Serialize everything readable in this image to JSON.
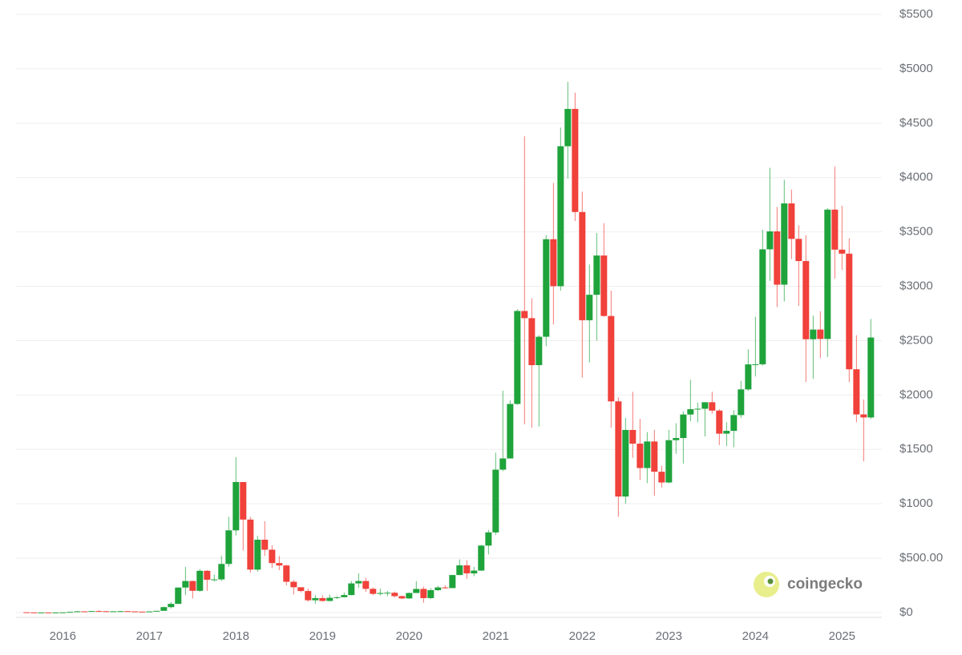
{
  "chart_data": {
    "type": "candlestick",
    "x": [
      2015.583,
      2015.667,
      2015.75,
      2015.833,
      2015.917,
      2016.0,
      2016.083,
      2016.167,
      2016.25,
      2016.333,
      2016.417,
      2016.5,
      2016.583,
      2016.667,
      2016.75,
      2016.833,
      2016.917,
      2017.0,
      2017.083,
      2017.167,
      2017.25,
      2017.333,
      2017.417,
      2017.5,
      2017.583,
      2017.667,
      2017.75,
      2017.833,
      2017.917,
      2018.0,
      2018.083,
      2018.167,
      2018.25,
      2018.333,
      2018.417,
      2018.5,
      2018.583,
      2018.667,
      2018.75,
      2018.833,
      2018.917,
      2019.0,
      2019.083,
      2019.167,
      2019.25,
      2019.333,
      2019.417,
      2019.5,
      2019.583,
      2019.667,
      2019.75,
      2019.833,
      2019.917,
      2020.0,
      2020.083,
      2020.167,
      2020.25,
      2020.333,
      2020.417,
      2020.5,
      2020.583,
      2020.667,
      2020.75,
      2020.833,
      2020.917,
      2021.0,
      2021.083,
      2021.167,
      2021.25,
      2021.333,
      2021.417,
      2021.5,
      2021.583,
      2021.667,
      2021.75,
      2021.833,
      2021.917,
      2022.0,
      2022.083,
      2022.167,
      2022.25,
      2022.333,
      2022.417,
      2022.5,
      2022.583,
      2022.667,
      2022.75,
      2022.833,
      2022.917,
      2023.0,
      2023.083,
      2023.167,
      2023.25,
      2023.333,
      2023.417,
      2023.5,
      2023.583,
      2023.667,
      2023.75,
      2023.833,
      2023.917,
      2024.0,
      2024.083,
      2024.167,
      2024.25,
      2024.333,
      2024.417,
      2024.5,
      2024.583,
      2024.667,
      2024.75,
      2024.833,
      2024.917,
      2025.0,
      2025.083,
      2025.167,
      2025.25,
      2025.333
    ],
    "open": [
      2.8,
      1.35,
      0.74,
      0.91,
      0.87,
      0.93,
      2.2,
      6.3,
      11.4,
      8.8,
      14,
      12.5,
      11.6,
      11.8,
      13.2,
      11,
      8.6,
      8,
      10.7,
      16,
      50,
      80,
      230,
      290,
      200,
      384,
      302,
      305,
      447,
      756,
      1200,
      855,
      395,
      670,
      578,
      455,
      433,
      283,
      233,
      198,
      113,
      133,
      107,
      136,
      141,
      161,
      268,
      290,
      218,
      172,
      180,
      182,
      151,
      130,
      180,
      217,
      133,
      206,
      231,
      225,
      345,
      434,
      360,
      386,
      616,
      737,
      1314,
      1417,
      1918,
      2773,
      2707,
      2275,
      2536,
      3433,
      3001,
      4288,
      4631,
      3683,
      2688,
      2922,
      3283,
      2727,
      1942,
      1067,
      1679,
      1553,
      1329,
      1573,
      1295,
      1196,
      1585,
      1605,
      1821,
      1870,
      1874,
      1934,
      1857,
      1645,
      1671,
      1816,
      2052,
      2282,
      2283,
      3340,
      3505,
      3015,
      3762,
      3436,
      3232,
      2513,
      2602,
      2516,
      3705,
      3337,
      3300,
      2237,
      1822,
      1794
    ],
    "high": [
      3.5,
      1.7,
      1.3,
      1.05,
      1.0,
      2.8,
      7.0,
      15,
      11.5,
      14.5,
      21,
      14.9,
      12.3,
      14.3,
      14.1,
      11.5,
      8.9,
      11.2,
      17,
      55,
      97,
      230,
      420,
      293,
      400,
      390,
      349,
      522,
      880,
      1430,
      1160,
      880,
      705,
      840,
      619,
      520,
      440,
      300,
      231,
      220,
      160,
      160,
      166,
      150,
      185,
      290,
      362,
      320,
      231,
      220,
      199,
      193,
      156,
      184,
      289,
      240,
      225,
      247,
      250,
      347,
      489,
      480,
      420,
      623,
      760,
      1470,
      2040,
      1950,
      2790,
      4380,
      2890,
      2550,
      3470,
      3950,
      4460,
      4880,
      4780,
      3870,
      3200,
      3490,
      3580,
      2960,
      1980,
      1790,
      2030,
      1780,
      1660,
      1680,
      1350,
      1680,
      1740,
      1850,
      2140,
      1930,
      1930,
      2030,
      1870,
      1750,
      1860,
      2130,
      2420,
      2720,
      3520,
      4090,
      3730,
      3980,
      3890,
      3560,
      3470,
      2730,
      2770,
      3720,
      4100,
      3740,
      3440,
      2550,
      1960,
      2700
    ],
    "low": [
      0.7,
      0.55,
      0.42,
      0.8,
      0.83,
      0.93,
      2.1,
      5.4,
      6.8,
      8.1,
      10.6,
      9.2,
      10.5,
      11.0,
      10.5,
      8.2,
      5.9,
      8.0,
      10.3,
      16.5,
      38,
      78,
      161,
      130,
      190,
      200,
      285,
      290,
      420,
      710,
      570,
      366,
      375,
      520,
      410,
      390,
      250,
      167,
      185,
      100,
      82,
      100,
      101,
      125,
      150,
      158,
      228,
      190,
      160,
      156,
      150,
      138,
      124,
      126,
      180,
      90,
      126,
      198,
      220,
      225,
      355,
      310,
      335,
      383,
      535,
      714,
      1300,
      1450,
      1910,
      1730,
      1700,
      1710,
      2450,
      2650,
      2960,
      3990,
      3600,
      2160,
      2300,
      2500,
      2720,
      1700,
      881,
      1000,
      1422,
      1220,
      1190,
      1073,
      1150,
      1190,
      1460,
      1370,
      1760,
      1750,
      1620,
      1830,
      1540,
      1530,
      1520,
      1790,
      2040,
      2170,
      2270,
      3050,
      2810,
      2860,
      3250,
      2820,
      2120,
      2150,
      2340,
      2350,
      3070,
      3150,
      2120,
      1750,
      1390,
      1780
    ],
    "close": [
      1.35,
      0.74,
      0.91,
      0.87,
      0.93,
      2.2,
      6.3,
      11.4,
      8.8,
      14,
      12.5,
      11.6,
      11.8,
      13.2,
      11,
      8.6,
      8,
      10.7,
      16,
      50,
      80,
      230,
      290,
      200,
      384,
      302,
      305,
      447,
      756,
      1200,
      855,
      395,
      670,
      578,
      455,
      433,
      283,
      233,
      198,
      113,
      133,
      107,
      136,
      141,
      161,
      268,
      290,
      218,
      172,
      180,
      182,
      151,
      130,
      180,
      217,
      133,
      206,
      231,
      225,
      345,
      434,
      360,
      386,
      616,
      737,
      1314,
      1417,
      1918,
      2773,
      2707,
      2275,
      2536,
      3433,
      3001,
      4288,
      4631,
      3683,
      2688,
      2922,
      3283,
      2727,
      1942,
      1067,
      1679,
      1553,
      1329,
      1573,
      1295,
      1196,
      1585,
      1605,
      1821,
      1870,
      1874,
      1934,
      1857,
      1645,
      1671,
      1816,
      2052,
      2282,
      2283,
      3340,
      3505,
      3015,
      3762,
      3436,
      3232,
      2513,
      2602,
      2516,
      3705,
      3337,
      3300,
      2237,
      1822,
      1794,
      2529
    ],
    "up_color": "#1fa33b",
    "down_color": "#f0413a",
    "xlim": [
      2015.46,
      2025.46
    ],
    "xticks": [
      2016,
      2017,
      2018,
      2019,
      2020,
      2021,
      2022,
      2023,
      2024,
      2025
    ],
    "ylim": [
      0,
      5500
    ],
    "yticks": [
      {
        "value": 0,
        "label": "$0"
      },
      {
        "value": 500,
        "label": "$500.00"
      },
      {
        "value": 1000,
        "label": "$1000"
      },
      {
        "value": 1500,
        "label": "$1500"
      },
      {
        "value": 2000,
        "label": "$2000"
      },
      {
        "value": 2500,
        "label": "$2500"
      },
      {
        "value": 3000,
        "label": "$3000"
      },
      {
        "value": 3500,
        "label": "$3500"
      },
      {
        "value": 4000,
        "label": "$4000"
      },
      {
        "value": 4500,
        "label": "$4500"
      },
      {
        "value": 5000,
        "label": "$5000"
      },
      {
        "value": 5500,
        "label": "$5500"
      }
    ],
    "grid": true,
    "watermark": "coingecko"
  }
}
